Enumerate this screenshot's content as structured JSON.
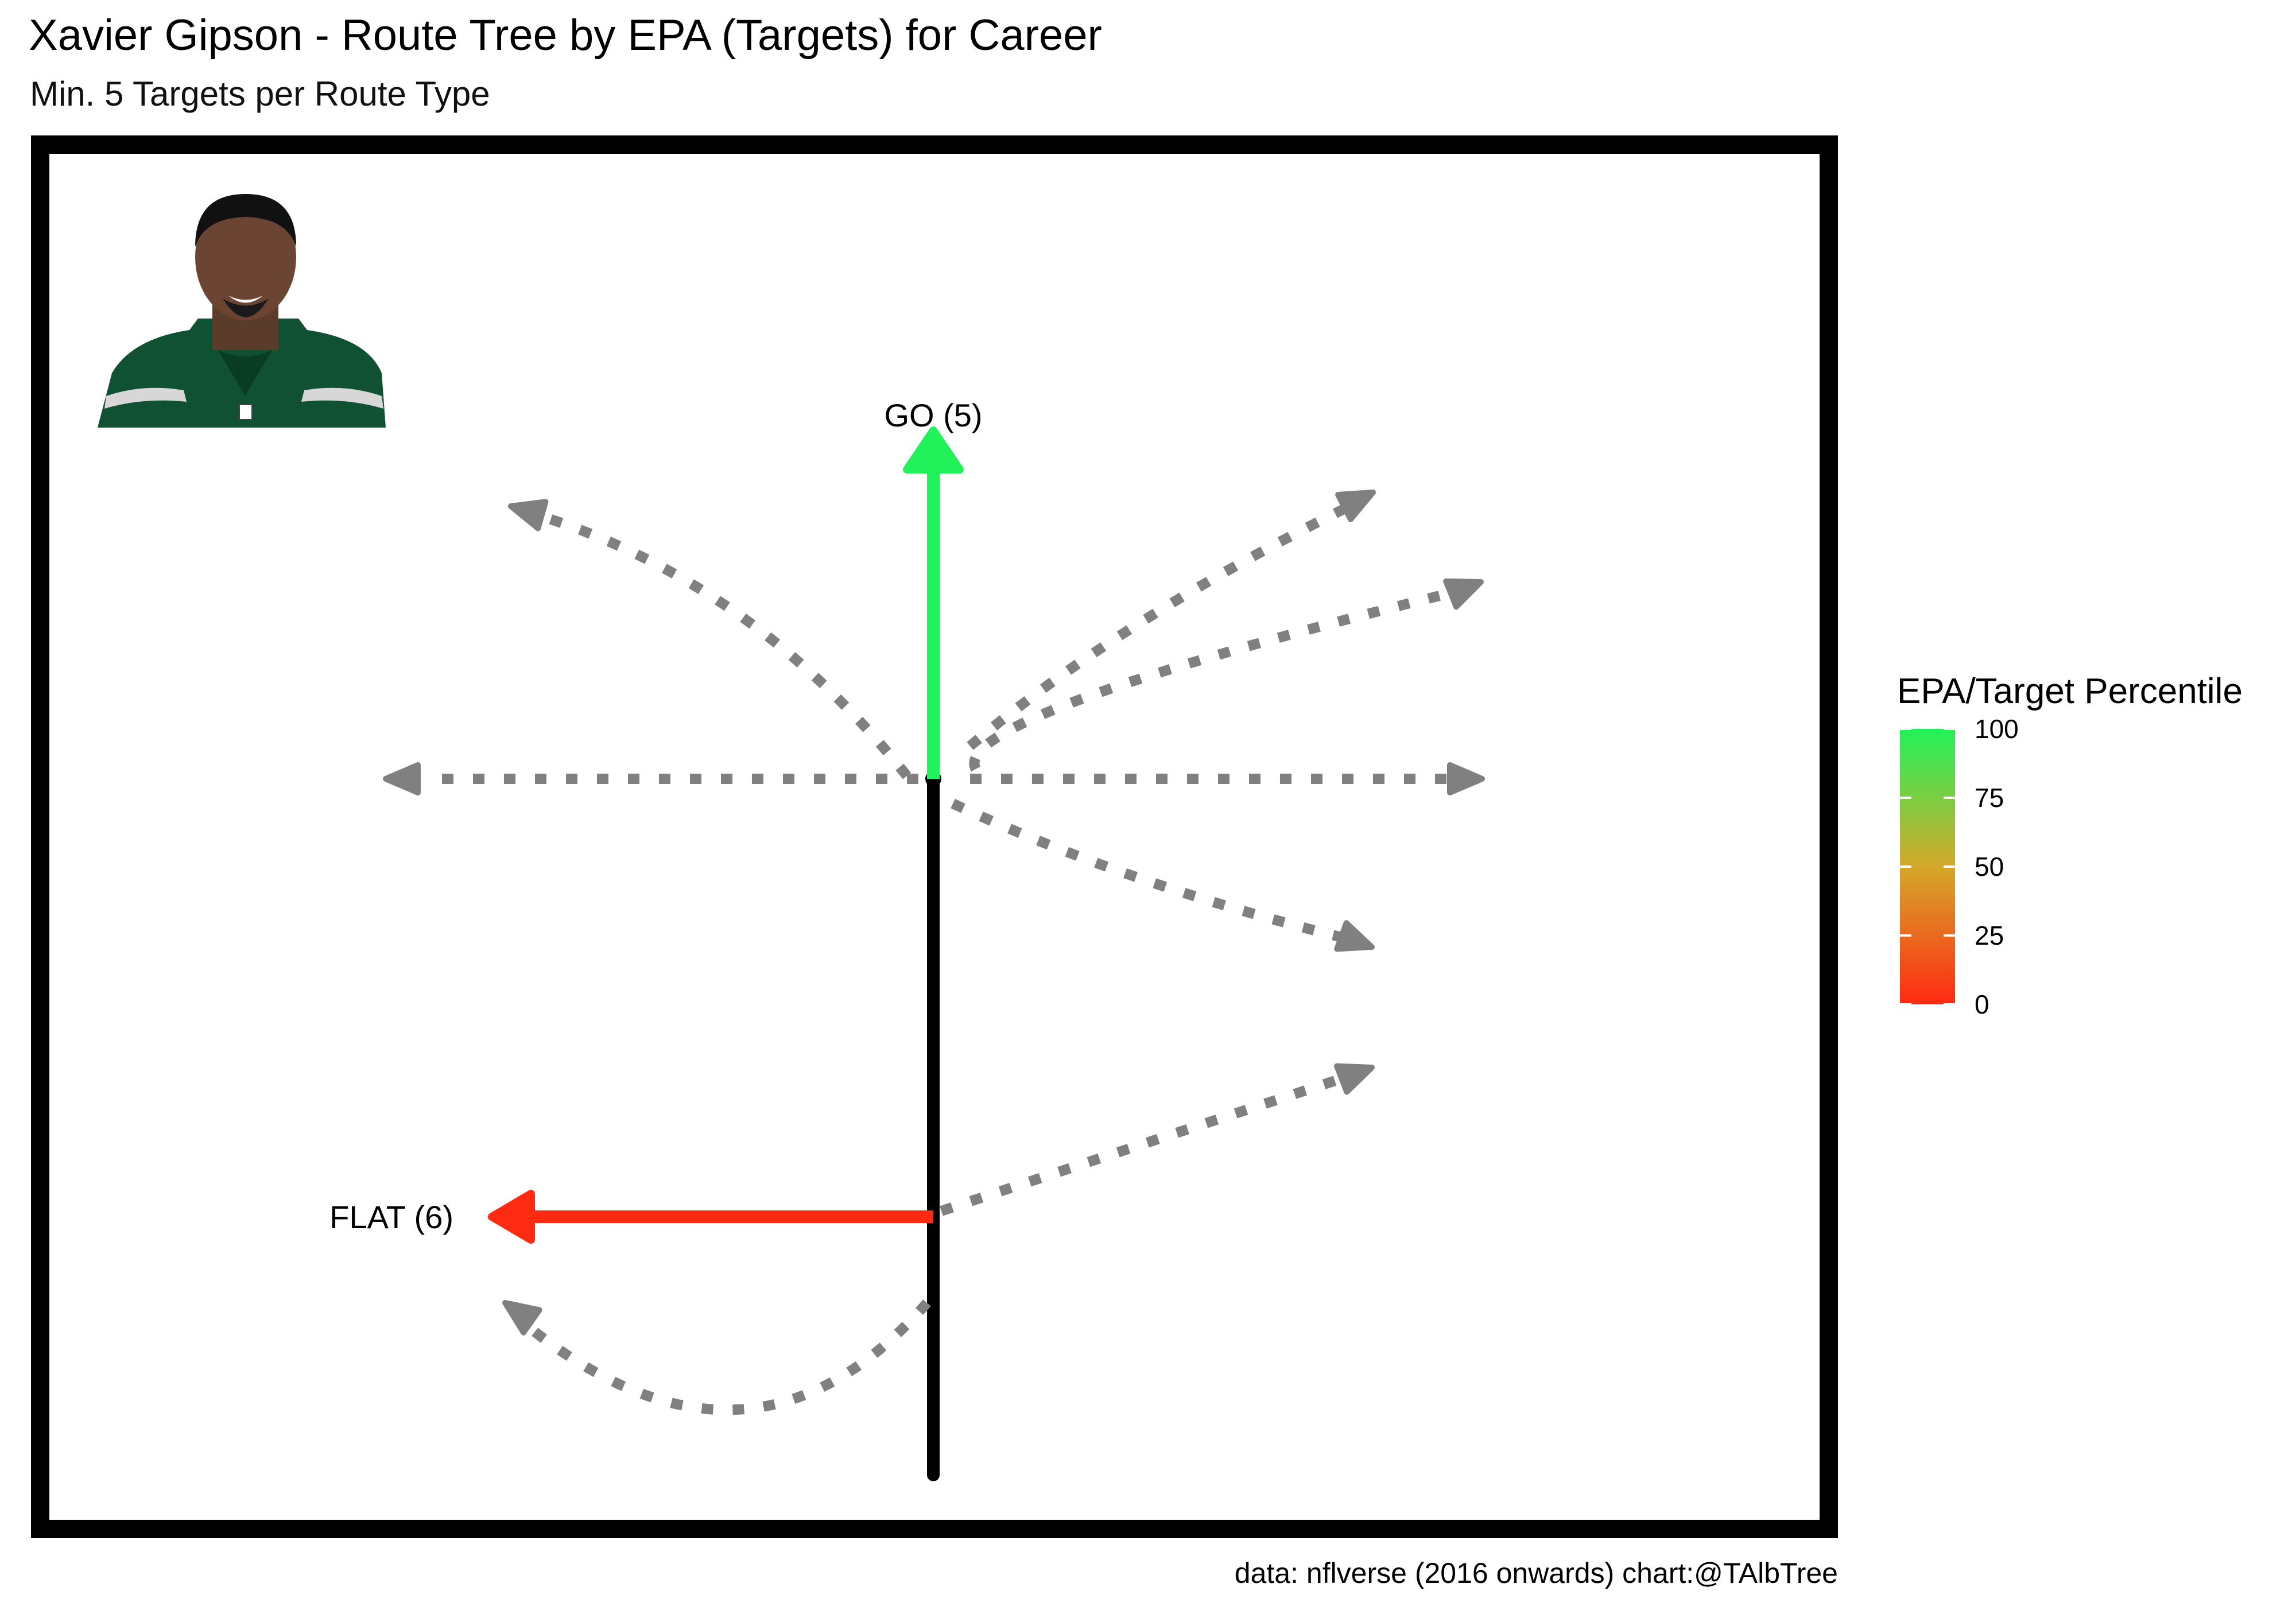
{
  "header": {
    "title": "Xavier Gipson - Route Tree by EPA (Targets) for Career",
    "subtitle": "Min. 5 Targets per Route Type"
  },
  "footer": {
    "caption": "data: nflverse (2016 onwards)  chart:@TAlbTree"
  },
  "colors": {
    "high": "#22f25a",
    "mid": "#d4a82a",
    "low": "#ff2a12",
    "stem": "#000000",
    "inactive": "#808080"
  },
  "chart_data": {
    "type": "route-tree",
    "title": "Xavier Gipson - Route Tree by EPA (Targets) for Career",
    "subtitle": "Min. 5 Targets per Route Type",
    "routes": [
      {
        "name": "GO",
        "targets": 5,
        "label": "GO (5)",
        "percentile": 100,
        "qualified": true
      },
      {
        "name": "FLAT",
        "targets": 6,
        "label": "FLAT (6)",
        "percentile": 0,
        "qualified": true
      },
      {
        "name": "unlabeled-route-1",
        "qualified": false
      },
      {
        "name": "unlabeled-route-2",
        "qualified": false
      },
      {
        "name": "unlabeled-route-3",
        "qualified": false
      },
      {
        "name": "unlabeled-route-4",
        "qualified": false
      },
      {
        "name": "unlabeled-route-5",
        "qualified": false
      },
      {
        "name": "unlabeled-route-6",
        "qualified": false
      },
      {
        "name": "unlabeled-route-7",
        "qualified": false
      },
      {
        "name": "unlabeled-route-8",
        "qualified": false
      }
    ],
    "legend": {
      "title": "EPA/Target Percentile",
      "range": [
        0,
        100
      ],
      "ticks": [
        "100",
        "75",
        "50",
        "25",
        "0"
      ],
      "tick_values": [
        100,
        75,
        50,
        25,
        0
      ]
    }
  }
}
